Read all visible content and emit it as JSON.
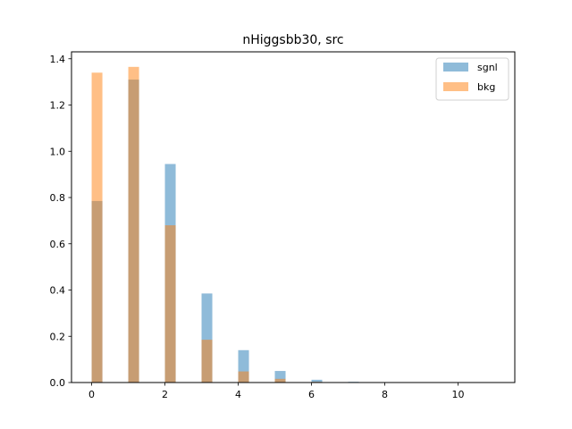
{
  "chart_data": {
    "type": "bar",
    "title": "nHiggsbb30, src",
    "xlabel": "",
    "ylabel": "",
    "xlim": [
      -0.55,
      11.55
    ],
    "ylim": [
      0,
      1.43
    ],
    "xticks": [
      0,
      2,
      4,
      6,
      8,
      10
    ],
    "xtick_labels": [
      "0",
      "2",
      "4",
      "6",
      "8",
      "10"
    ],
    "yticks": [
      0.0,
      0.2,
      0.4,
      0.6,
      0.8,
      1.0,
      1.2,
      1.4
    ],
    "ytick_labels": [
      "0.0",
      "0.2",
      "0.4",
      "0.6",
      "0.8",
      "1.0",
      "1.2",
      "1.4"
    ],
    "bin_width": 0.2933,
    "grid": false,
    "legend_position": "top-right",
    "series": [
      {
        "name": "sgnl",
        "color": "#1f77b4",
        "alpha": 0.5,
        "x": [
          0,
          1,
          2,
          3,
          4,
          5,
          6,
          7
        ],
        "values": [
          0.785,
          1.31,
          0.945,
          0.385,
          0.14,
          0.05,
          0.012,
          0.003
        ]
      },
      {
        "name": "bkg",
        "color": "#ff7f0e",
        "alpha": 0.5,
        "x": [
          0,
          1,
          2,
          3,
          4,
          5,
          6,
          7
        ],
        "values": [
          1.34,
          1.365,
          0.68,
          0.185,
          0.048,
          0.016,
          0.003,
          0.001
        ]
      }
    ]
  }
}
